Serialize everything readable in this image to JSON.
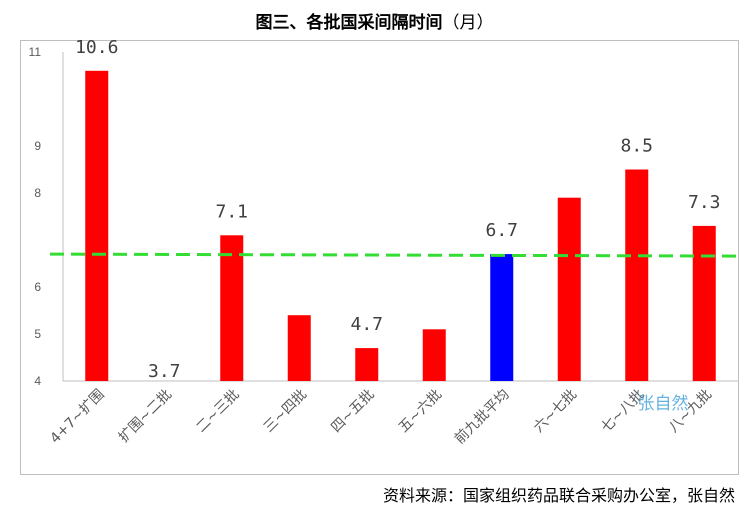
{
  "title": "图三、各批国采间隔时间",
  "title_unit": "（月）",
  "source": "资料来源：国家组织药品联合采购办公室，张自然",
  "watermark": "张自然",
  "colors": {
    "red": "#ff0000",
    "blue": "#0000ff",
    "avg_line": "#33dd33",
    "watermark": "#55aadd"
  },
  "chart_data": {
    "type": "bar",
    "categories": [
      "4+7~扩围",
      "扩围~二批",
      "二~三批",
      "三~四批",
      "四~五批",
      "五~六批",
      "前九批平均",
      "六~七批",
      "七~八批",
      "八~九批"
    ],
    "values": [
      10.6,
      3.7,
      7.1,
      5.4,
      4.7,
      5.1,
      6.7,
      7.9,
      8.5,
      7.3
    ],
    "data_labels": [
      "10.6",
      "3.7",
      "7.1",
      "",
      "4.7",
      "",
      "6.7",
      "",
      "8.5",
      "7.3"
    ],
    "bar_colors": [
      "red",
      "red",
      "red",
      "red",
      "red",
      "red",
      "blue",
      "red",
      "red",
      "red"
    ],
    "y_ticks": [
      4,
      5,
      6,
      8,
      9,
      11
    ],
    "ylim": [
      4,
      11
    ],
    "average_line": 6.7,
    "grid": false
  }
}
